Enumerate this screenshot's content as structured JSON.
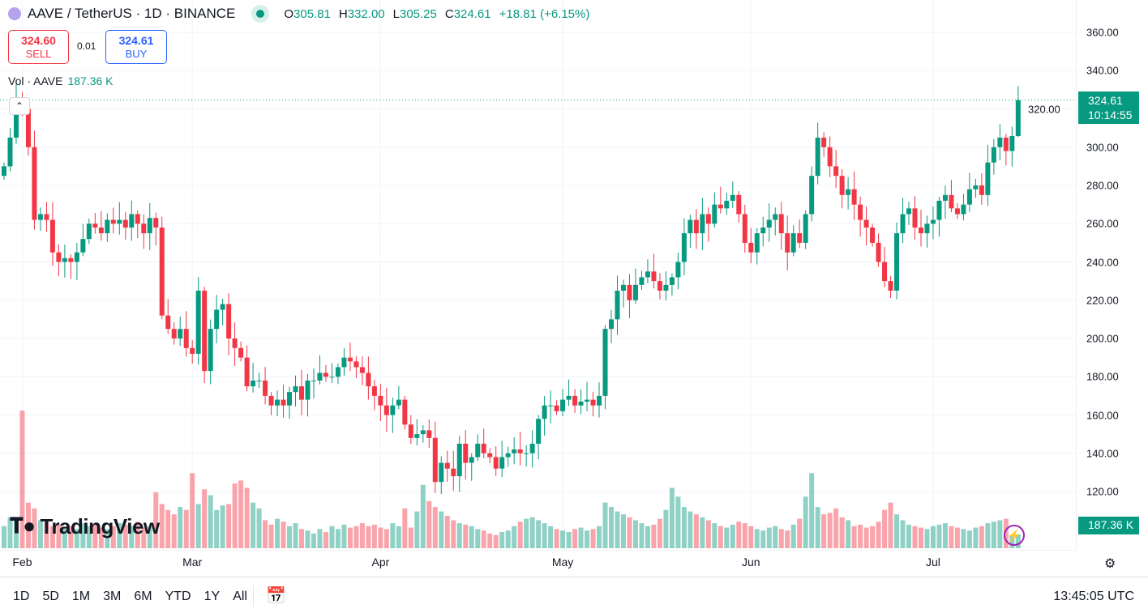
{
  "header": {
    "symbol": "AAVE / TetherUS · 1D · BINANCE",
    "o_label": "O",
    "o": "305.81",
    "h_label": "H",
    "h": "332.00",
    "l_label": "L",
    "l": "305.25",
    "c_label": "C",
    "c": "324.61",
    "change": "+18.81 (+6.15%)"
  },
  "trade": {
    "sell_price": "324.60",
    "sell_label": "SELL",
    "spread": "0.01",
    "buy_price": "324.61",
    "buy_label": "BUY"
  },
  "volume_legend": {
    "label": "Vol · AAVE",
    "value": "187.36 K"
  },
  "last_price": {
    "price": "324.61",
    "countdown": "10:14:55"
  },
  "last_volume": "187.36 K",
  "logo": "TradingView",
  "bottom": {
    "ranges": [
      "1D",
      "5D",
      "1M",
      "3M",
      "6M",
      "YTD",
      "1Y",
      "All"
    ],
    "time": "13:45:05 UTC"
  },
  "colors": {
    "up": "#089981",
    "down": "#f23645"
  },
  "chart_data": {
    "type": "candlestick",
    "interval": "1D",
    "note": "open of each candle equals previous close",
    "first_open": 285,
    "last_candle": {
      "open": 305.81,
      "high": 332.0,
      "low": 305.25,
      "close": 324.61
    },
    "close": [
      290,
      305,
      326,
      320,
      300,
      262,
      265,
      262,
      245,
      240,
      242,
      240,
      245,
      252,
      260,
      258,
      255,
      262,
      260,
      262,
      258,
      265,
      260,
      255,
      263,
      258,
      212,
      205,
      200,
      205,
      195,
      192,
      225,
      183,
      205,
      215,
      218,
      200,
      195,
      190,
      175,
      178,
      178,
      170,
      165,
      168,
      165,
      172,
      175,
      168,
      178,
      178,
      182,
      180,
      180,
      185,
      190,
      188,
      185,
      182,
      175,
      170,
      165,
      160,
      165,
      168,
      155,
      148,
      150,
      152,
      148,
      125,
      135,
      132,
      128,
      145,
      135,
      138,
      145,
      140,
      138,
      132,
      138,
      140,
      142,
      140,
      140,
      145,
      158,
      165,
      165,
      162,
      168,
      170,
      165,
      167,
      168,
      165,
      170,
      205,
      210,
      225,
      228,
      220,
      228,
      232,
      235,
      230,
      225,
      228,
      232,
      240,
      255,
      262,
      255,
      265,
      260,
      270,
      268,
      272,
      275,
      265,
      250,
      245,
      255,
      258,
      262,
      265,
      255,
      245,
      255,
      250,
      265,
      285,
      305,
      300,
      290,
      285,
      275,
      278,
      270,
      262,
      258,
      250,
      240,
      230,
      225,
      255,
      265,
      268,
      258,
      255,
      260,
      262,
      272,
      275,
      268,
      265,
      270,
      278,
      280,
      275,
      292,
      300,
      305,
      298,
      305.81,
      324.61
    ],
    "volume_k": [
      300,
      420,
      380,
      1870,
      620,
      540,
      380,
      360,
      300,
      320,
      280,
      300,
      260,
      340,
      300,
      320,
      280,
      260,
      300,
      340,
      320,
      300,
      360,
      280,
      300,
      760,
      600,
      520,
      460,
      560,
      520,
      1020,
      600,
      800,
      720,
      520,
      580,
      600,
      880,
      920,
      820,
      620,
      540,
      380,
      320,
      400,
      360,
      300,
      340,
      260,
      240,
      200,
      260,
      220,
      300,
      260,
      320,
      280,
      300,
      340,
      300,
      320,
      280,
      260,
      340,
      300,
      540,
      280,
      500,
      860,
      640,
      560,
      500,
      440,
      380,
      340,
      320,
      300,
      260,
      240,
      200,
      180,
      220,
      240,
      300,
      360,
      400,
      420,
      380,
      340,
      300,
      260,
      240,
      220,
      260,
      280,
      240,
      260,
      300,
      620,
      560,
      500,
      460,
      420,
      380,
      340,
      300,
      320,
      400,
      520,
      820,
      700,
      560,
      500,
      460,
      420,
      380,
      340,
      300,
      280,
      320,
      360,
      340,
      300,
      260,
      240,
      280,
      300,
      260,
      240,
      320,
      400,
      700,
      1020,
      560,
      460,
      480,
      540,
      420,
      380,
      300,
      320,
      280,
      300,
      360,
      520,
      620,
      460,
      380,
      320,
      300,
      280,
      260,
      300,
      320,
      340,
      300,
      280,
      260,
      240,
      280,
      300,
      340,
      360,
      380,
      400,
      180,
      187.36
    ],
    "y_ticks": [
      "360.00",
      "340.00",
      "320.00",
      "300.00",
      "280.00",
      "260.00",
      "240.00",
      "220.00",
      "200.00",
      "180.00",
      "160.00",
      "140.00",
      "120.00"
    ],
    "y_tick_values": [
      360,
      340,
      320,
      300,
      280,
      260,
      240,
      220,
      200,
      180,
      160,
      140,
      120
    ],
    "ylim": [
      120,
      360
    ],
    "x_ticks": [
      "Feb",
      "Mar",
      "Apr",
      "May",
      "Jun",
      "Jul"
    ],
    "x_tick_index": [
      3,
      31,
      62,
      92,
      123,
      153
    ]
  }
}
